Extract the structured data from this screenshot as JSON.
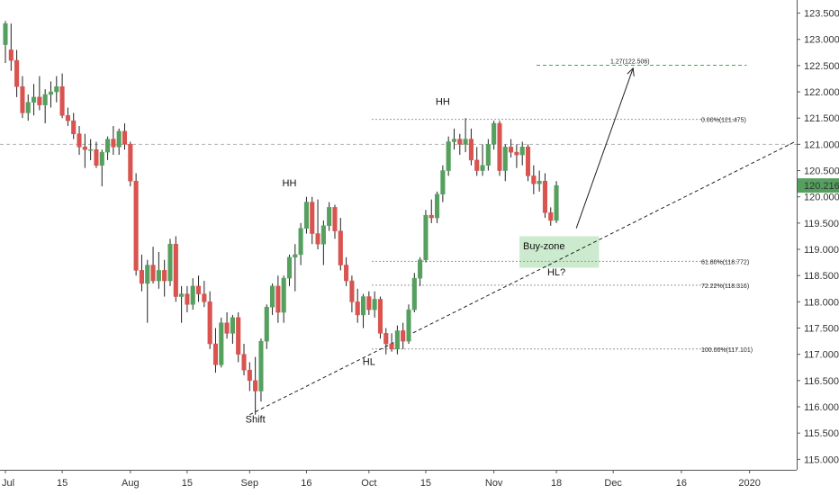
{
  "colors": {
    "up": "#56a05f",
    "down": "#d9534f",
    "wick": "#222222",
    "axis_text": "#333333",
    "fib": "#999999",
    "target": "#3fae49",
    "buy_zone_fill": "#b9e3bd",
    "price_badge": "#56a05f"
  },
  "chart_data": {
    "type": "candlestick",
    "title": "",
    "y_ticks": [
      "123.500",
      "123.000",
      "122.500",
      "122.000",
      "121.500",
      "121.000",
      "120.500",
      "120.000",
      "119.500",
      "119.000",
      "118.500",
      "118.000",
      "117.500",
      "117.000",
      "116.500",
      "116.000",
      "115.500",
      "115.000"
    ],
    "y_tick_values": [
      123.5,
      123.0,
      122.5,
      122.0,
      121.5,
      121.0,
      120.5,
      120.0,
      119.5,
      119.0,
      118.5,
      118.0,
      117.5,
      117.0,
      116.5,
      116.0,
      115.5,
      115.0
    ],
    "ylim": [
      114.8,
      123.75
    ],
    "x_ticks": [
      {
        "label": "Jul",
        "i": 0
      },
      {
        "label": "15",
        "i": 10
      },
      {
        "label": "Aug",
        "i": 22
      },
      {
        "label": "15",
        "i": 32
      },
      {
        "label": "Sep",
        "i": 43
      },
      {
        "label": "16",
        "i": 53
      },
      {
        "label": "Oct",
        "i": 64
      },
      {
        "label": "15",
        "i": 74
      },
      {
        "label": "Nov",
        "i": 86
      },
      {
        "label": "18",
        "i": 97
      },
      {
        "label": "Dec",
        "i": 107
      },
      {
        "label": "16",
        "i": 119
      },
      {
        "label": "2020",
        "i": 131
      }
    ],
    "xlim": [
      0,
      139
    ],
    "last_price": "120.216",
    "candles": [
      [
        122.9,
        123.35,
        122.55,
        123.3
      ],
      [
        122.8,
        123.3,
        122.4,
        122.6
      ],
      [
        122.6,
        122.8,
        121.9,
        122.1
      ],
      [
        122.1,
        122.3,
        121.5,
        121.6
      ],
      [
        121.6,
        121.95,
        121.45,
        121.8
      ],
      [
        121.8,
        122.15,
        121.55,
        121.9
      ],
      [
        121.9,
        122.3,
        121.65,
        121.75
      ],
      [
        121.75,
        122.05,
        121.4,
        121.95
      ],
      [
        121.95,
        122.2,
        121.7,
        122.0
      ],
      [
        122.0,
        122.3,
        121.8,
        122.1
      ],
      [
        122.1,
        122.35,
        121.5,
        121.55
      ],
      [
        121.55,
        121.7,
        121.35,
        121.45
      ],
      [
        121.45,
        121.6,
        121.1,
        121.2
      ],
      [
        121.2,
        121.35,
        120.8,
        120.95
      ],
      [
        120.95,
        121.2,
        120.55,
        120.9
      ],
      [
        120.9,
        121.1,
        120.7,
        120.9
      ],
      [
        120.9,
        121.05,
        120.55,
        120.6
      ],
      [
        120.6,
        120.9,
        120.2,
        120.85
      ],
      [
        120.85,
        121.15,
        120.7,
        121.1
      ],
      [
        121.1,
        121.35,
        120.8,
        120.95
      ],
      [
        120.95,
        121.3,
        120.8,
        121.25
      ],
      [
        121.25,
        121.4,
        120.9,
        121.0
      ],
      [
        121.0,
        121.05,
        120.2,
        120.3
      ],
      [
        120.3,
        120.45,
        118.5,
        118.6
      ],
      [
        118.6,
        118.9,
        118.2,
        118.35
      ],
      [
        118.35,
        118.8,
        117.6,
        118.7
      ],
      [
        118.7,
        119.05,
        118.35,
        118.4
      ],
      [
        118.4,
        118.95,
        118.25,
        118.6
      ],
      [
        118.6,
        118.8,
        118.1,
        118.4
      ],
      [
        118.4,
        119.2,
        118.3,
        119.1
      ],
      [
        119.1,
        119.25,
        118.0,
        118.1
      ],
      [
        118.1,
        118.3,
        117.6,
        118.15
      ],
      [
        118.15,
        118.3,
        117.8,
        117.95
      ],
      [
        117.95,
        118.45,
        117.85,
        118.3
      ],
      [
        118.3,
        118.5,
        118.0,
        118.15
      ],
      [
        118.15,
        118.4,
        117.9,
        118.0
      ],
      [
        118.0,
        118.2,
        117.1,
        117.2
      ],
      [
        117.2,
        117.5,
        116.65,
        116.8
      ],
      [
        116.8,
        117.7,
        116.75,
        117.6
      ],
      [
        117.6,
        117.8,
        117.3,
        117.4
      ],
      [
        117.4,
        117.75,
        117.2,
        117.7
      ],
      [
        117.7,
        117.8,
        116.85,
        117.0
      ],
      [
        117.0,
        117.2,
        116.6,
        116.7
      ],
      [
        116.7,
        116.85,
        116.3,
        116.5
      ],
      [
        116.5,
        116.95,
        115.85,
        116.3
      ],
      [
        116.3,
        117.3,
        116.1,
        117.25
      ],
      [
        117.25,
        117.95,
        117.1,
        117.9
      ],
      [
        117.9,
        118.35,
        117.75,
        118.3
      ],
      [
        118.3,
        118.5,
        117.6,
        117.8
      ],
      [
        117.8,
        118.5,
        117.6,
        118.45
      ],
      [
        118.45,
        118.9,
        118.3,
        118.85
      ],
      [
        118.85,
        119.1,
        118.2,
        118.9
      ],
      [
        118.9,
        119.5,
        118.7,
        119.4
      ],
      [
        119.4,
        120.0,
        119.3,
        119.9
      ],
      [
        119.9,
        120.0,
        119.1,
        119.3
      ],
      [
        119.3,
        119.95,
        119.0,
        119.1
      ],
      [
        119.1,
        119.55,
        118.7,
        119.45
      ],
      [
        119.45,
        119.9,
        119.35,
        119.8
      ],
      [
        119.8,
        119.85,
        119.2,
        119.35
      ],
      [
        119.35,
        119.6,
        118.6,
        118.7
      ],
      [
        118.7,
        118.85,
        118.3,
        118.4
      ],
      [
        118.4,
        118.5,
        117.8,
        118.0
      ],
      [
        118.0,
        118.25,
        117.6,
        117.75
      ],
      [
        117.75,
        118.15,
        117.5,
        118.1
      ],
      [
        118.1,
        118.2,
        117.75,
        117.85
      ],
      [
        117.85,
        118.2,
        117.7,
        118.05
      ],
      [
        118.05,
        118.1,
        117.3,
        117.4
      ],
      [
        117.4,
        117.5,
        117.0,
        117.2
      ],
      [
        117.2,
        117.4,
        117.05,
        117.1
      ],
      [
        117.1,
        117.55,
        117.0,
        117.45
      ],
      [
        117.45,
        117.6,
        117.1,
        117.25
      ],
      [
        117.25,
        117.95,
        117.2,
        117.85
      ],
      [
        117.85,
        118.55,
        117.8,
        118.45
      ],
      [
        118.45,
        118.85,
        118.3,
        118.8
      ],
      [
        118.8,
        119.75,
        118.75,
        119.65
      ],
      [
        119.65,
        119.95,
        119.5,
        119.6
      ],
      [
        119.6,
        120.1,
        119.5,
        120.05
      ],
      [
        120.05,
        120.6,
        119.9,
        120.5
      ],
      [
        120.5,
        121.15,
        120.4,
        121.05
      ],
      [
        121.05,
        121.3,
        120.9,
        121.1
      ],
      [
        121.1,
        121.2,
        120.8,
        121.0
      ],
      [
        121.0,
        121.5,
        120.85,
        121.1
      ],
      [
        121.1,
        121.3,
        120.6,
        120.7
      ],
      [
        120.7,
        120.95,
        120.4,
        120.5
      ],
      [
        120.5,
        121.0,
        120.4,
        120.6
      ],
      [
        120.6,
        121.1,
        120.5,
        121.0
      ],
      [
        121.0,
        121.45,
        120.9,
        121.4
      ],
      [
        121.4,
        121.45,
        120.4,
        120.5
      ],
      [
        120.5,
        121.0,
        120.3,
        120.95
      ],
      [
        120.95,
        121.1,
        120.75,
        120.85
      ],
      [
        120.85,
        121.0,
        120.55,
        120.8
      ],
      [
        120.8,
        121.05,
        120.6,
        120.95
      ],
      [
        120.95,
        121.0,
        120.3,
        120.4
      ],
      [
        120.4,
        120.6,
        120.05,
        120.25
      ],
      [
        120.25,
        120.5,
        120.1,
        120.3
      ],
      [
        120.3,
        120.45,
        119.6,
        119.7
      ],
      [
        119.7,
        119.8,
        119.45,
        119.55
      ],
      [
        119.55,
        120.3,
        119.5,
        120.216
      ]
    ],
    "fib_levels": [
      {
        "label": "0.00%(121.475)",
        "value": 121.475
      },
      {
        "label": "61.80%(118.772)",
        "value": 118.772
      },
      {
        "label": "72.22%(118.316)",
        "value": 118.316
      },
      {
        "label": "100.00%(117.101)",
        "value": 117.101
      }
    ],
    "target_level": {
      "label": "1.27(122.506)",
      "value": 122.506
    },
    "resistance_level": 121.0,
    "annotations": [
      {
        "text": "HH",
        "i": 50,
        "price": 120.2
      },
      {
        "text": "HH",
        "i": 77,
        "price": 121.75
      },
      {
        "text": "Shift",
        "i": 44,
        "price": 115.7
      },
      {
        "text": "HL",
        "i": 64,
        "price": 116.8
      },
      {
        "text": "Buy-zone",
        "i": 94,
        "price": 119.0
      },
      {
        "text": "HL?",
        "i": 97,
        "price": 118.5
      }
    ],
    "trendline": {
      "from": {
        "i": 43,
        "price": 115.85
      },
      "to": {
        "i": 139,
        "price": 121.05
      }
    },
    "buy_zone": {
      "i_from": 90.5,
      "i_to": 104.5,
      "top": 119.25,
      "bottom": 118.65
    },
    "projection": {
      "from": {
        "i": 100.5,
        "price": 119.4
      },
      "to": {
        "i": 110.5,
        "price": 122.45
      }
    }
  }
}
